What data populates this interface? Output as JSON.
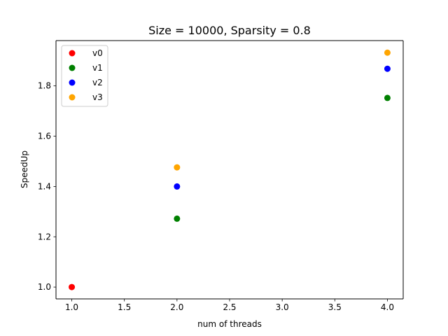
{
  "chart_data": {
    "type": "scatter",
    "title": "Size = 10000, Sparsity = 0.8",
    "xlabel": "num of threads",
    "ylabel": "SpeedUp",
    "xlim": [
      0.85,
      4.15
    ],
    "ylim": [
      0.953,
      1.98
    ],
    "x_ticks": [
      1.0,
      1.5,
      2.0,
      2.5,
      3.0,
      3.5,
      4.0
    ],
    "x_tick_labels": [
      "1.0",
      "1.5",
      "2.0",
      "2.5",
      "3.0",
      "3.5",
      "4.0"
    ],
    "y_ticks": [
      1.0,
      1.2,
      1.4,
      1.6,
      1.8
    ],
    "y_tick_labels": [
      "1.0",
      "1.2",
      "1.4",
      "1.6",
      "1.8"
    ],
    "grid": false,
    "legend_position": "upper-left",
    "series": [
      {
        "name": "v0",
        "color": "#ff0000",
        "points": [
          {
            "x": 1.0,
            "y": 1.0
          }
        ]
      },
      {
        "name": "v1",
        "color": "#008000",
        "points": [
          {
            "x": 2.0,
            "y": 1.272
          },
          {
            "x": 4.0,
            "y": 1.752
          }
        ]
      },
      {
        "name": "v2",
        "color": "#0000ff",
        "points": [
          {
            "x": 2.0,
            "y": 1.4
          },
          {
            "x": 4.0,
            "y": 1.868
          }
        ]
      },
      {
        "name": "v3",
        "color": "#ffa500",
        "points": [
          {
            "x": 2.0,
            "y": 1.476
          },
          {
            "x": 4.0,
            "y": 1.932
          }
        ]
      }
    ]
  }
}
